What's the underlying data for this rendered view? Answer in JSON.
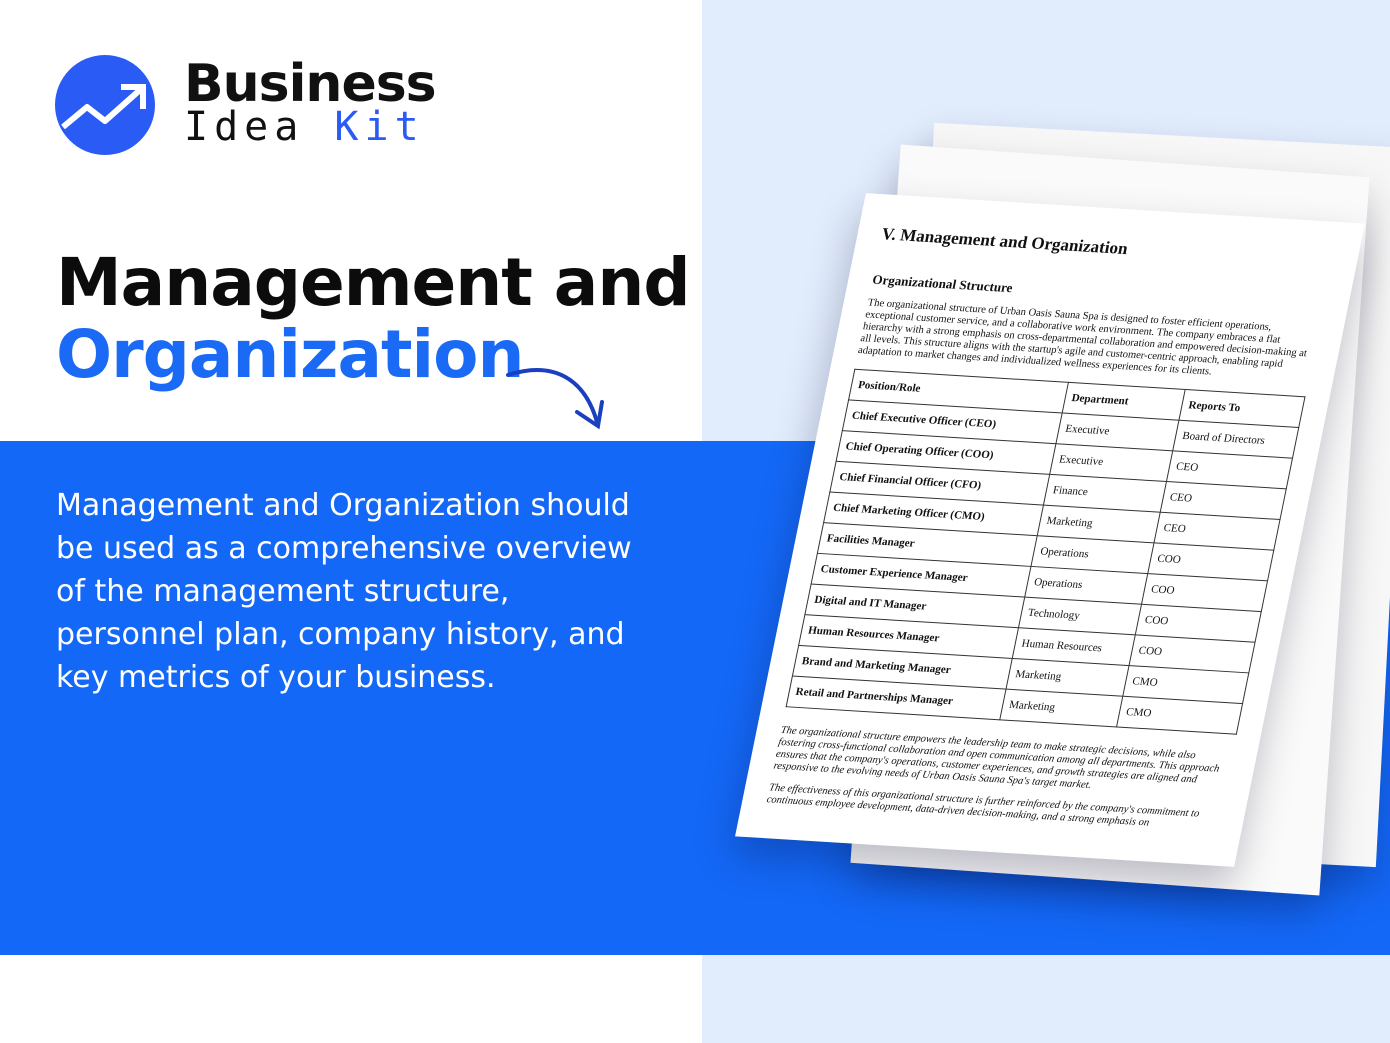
{
  "brand": {
    "line1": "Business",
    "line2a": "Idea",
    "line2b": "Kit",
    "accent": "#2a5bf5"
  },
  "headline": {
    "line1": "Management and",
    "line2": "Organization"
  },
  "description": "Management and Organization should be used as a comprehensive overview of the management structure, personnel plan, company history, and key metrics of your business.",
  "colors": {
    "band": "#1468f7",
    "right_bg": "#e1ecfd"
  },
  "document": {
    "title": "V. Management and Organization",
    "subtitle": "Organizational Structure",
    "intro": "The organizational structure of Urban Oasis Sauna Spa is designed to foster efficient operations, exceptional customer service, and a collaborative work environment. The company embraces a flat hierarchy with a strong emphasis on cross-departmental collaboration and empowered decision-making at all levels. This structure aligns with the startup's agile and customer-centric approach, enabling rapid adaptation to market changes and individualized wellness experiences for its clients.",
    "table": {
      "headers": [
        "Position/Role",
        "Department",
        "Reports To"
      ],
      "rows": [
        [
          "Chief Executive Officer (CEO)",
          "Executive",
          "Board of Directors"
        ],
        [
          "Chief Operating Officer (COO)",
          "Executive",
          "CEO"
        ],
        [
          "Chief Financial Officer (CFO)",
          "Finance",
          "CEO"
        ],
        [
          "Chief Marketing Officer (CMO)",
          "Marketing",
          "CEO"
        ],
        [
          "Facilities Manager",
          "Operations",
          "COO"
        ],
        [
          "Customer Experience Manager",
          "Operations",
          "COO"
        ],
        [
          "Digital and IT Manager",
          "Technology",
          "COO"
        ],
        [
          "Human Resources Manager",
          "Human Resources",
          "COO"
        ],
        [
          "Brand and Marketing Manager",
          "Marketing",
          "CMO"
        ],
        [
          "Retail and Partnerships Manager",
          "Marketing",
          "CMO"
        ]
      ]
    },
    "para2": "The organizational structure empowers the leadership team to make strategic decisions, while also fostering cross-functional collaboration and open communication among all departments. This approach ensures that the company's operations, customer experiences, and growth strategies are aligned and responsive to the evolving needs of Urban Oasis Sauna Spa's target market.",
    "para3": "The effectiveness of this organizational structure is further reinforced by the company's commitment to continuous employee development, data-driven decision-making, and a strong emphasis on"
  }
}
